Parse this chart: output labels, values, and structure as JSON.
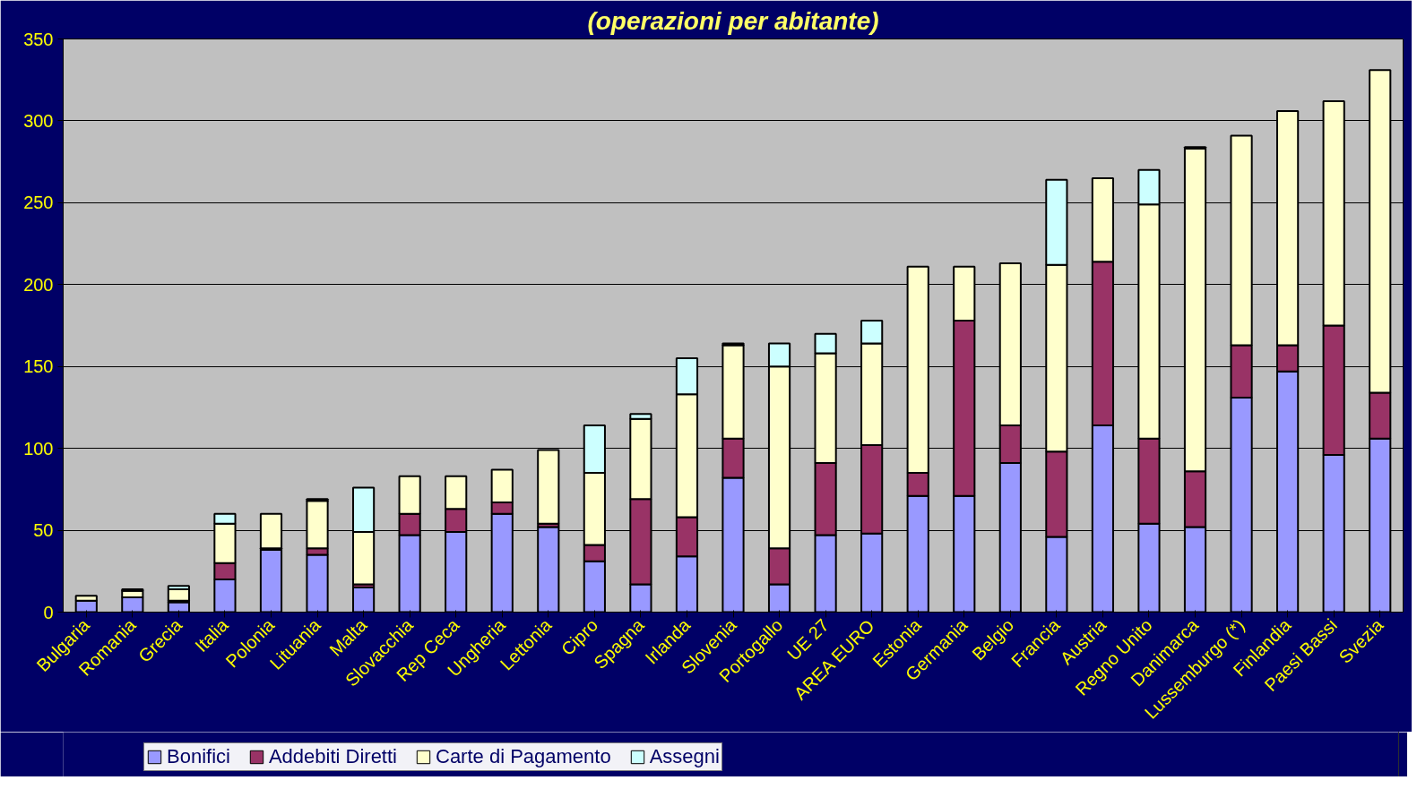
{
  "chart_data": {
    "type": "bar",
    "title": "(operazioni per abitante)",
    "stacked": true,
    "categories": [
      "Bulgaria",
      "Romania",
      "Grecia",
      "Italia",
      "Polonia",
      "Lituania",
      "Malta",
      "Slovacchia",
      "Rep Ceca",
      "Ungheria",
      "Lettonia",
      "Cipro",
      "Spagna",
      "Irlanda",
      "Slovenia",
      "Portogallo",
      "UE 27",
      "AREA EURO",
      "Estonia",
      "Germania",
      "Belgio",
      "Francia",
      "Austria",
      "Regno Unito",
      "Danimarca",
      "Lussemburgo (*)",
      "Finlandia",
      "Paesi Bassi",
      "Svezia"
    ],
    "series": [
      {
        "name": "Bonifici",
        "color": "#9999ff",
        "values": [
          7,
          9,
          6,
          20,
          38,
          35,
          15,
          47,
          49,
          60,
          52,
          31,
          17,
          34,
          82,
          17,
          47,
          48,
          71,
          71,
          91,
          46,
          114,
          54,
          52,
          131,
          147,
          96,
          106
        ]
      },
      {
        "name": "Addebiti Diretti",
        "color": "#993366",
        "values": [
          0,
          0,
          1,
          10,
          1,
          4,
          2,
          13,
          14,
          7,
          2,
          10,
          52,
          24,
          24,
          22,
          44,
          54,
          14,
          107,
          23,
          52,
          100,
          52,
          34,
          32,
          16,
          79,
          28
        ]
      },
      {
        "name": "Carte di Pagamento",
        "color": "#ffffcc",
        "values": [
          3,
          4,
          7,
          24,
          21,
          29,
          32,
          23,
          20,
          20,
          45,
          44,
          49,
          75,
          57,
          111,
          67,
          62,
          126,
          33,
          99,
          114,
          51,
          143,
          197,
          128,
          143,
          137,
          197
        ]
      },
      {
        "name": "Assegni",
        "color": "#ccffff",
        "values": [
          0,
          1,
          2,
          6,
          0,
          1,
          27,
          0,
          0,
          0,
          0,
          29,
          3,
          22,
          1,
          14,
          12,
          14,
          0,
          0,
          0,
          52,
          0,
          21,
          1,
          0,
          0,
          0,
          0
        ]
      }
    ],
    "ylim": [
      0,
      350
    ],
    "yticks": [
      0,
      50,
      100,
      150,
      200,
      250,
      300,
      350
    ],
    "grid": "y",
    "legend": "bottom left"
  }
}
